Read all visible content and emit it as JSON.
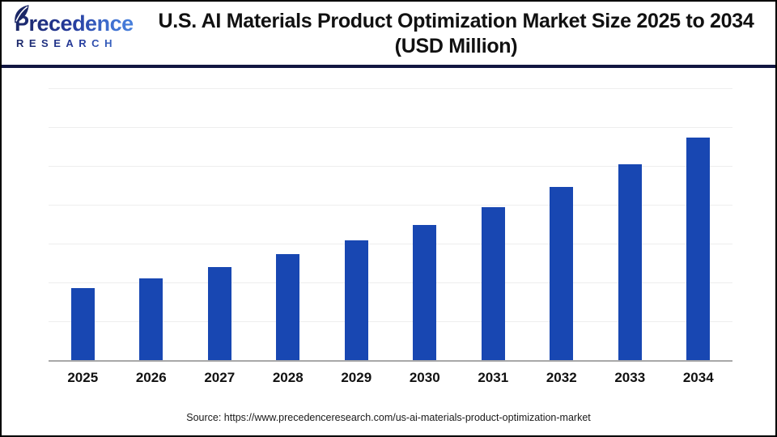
{
  "brand": {
    "name_line1": "Precedence",
    "name_line2": "RESEARCH"
  },
  "header": {
    "title_line1": "U.S. AI Materials Product Optimization Market Size 2025 to 2034",
    "title_line2": "(USD Million)"
  },
  "footer": {
    "source_text": "Source: https://www.precedenceresearch.com/us-ai-materials-product-optimization-market"
  },
  "colors": {
    "bar": "#1847B2",
    "header_divider": "#111641",
    "gridline": "#eeeeee",
    "axis_line": "#a8a8a8",
    "logo_dark": "#1b2766",
    "logo_light": "#4a86e0"
  },
  "chart_data": {
    "type": "bar",
    "title": "U.S. AI Materials Product Optimization Market Size 2025 to 2034 (USD Million)",
    "unit": "USD Million",
    "categories": [
      "2025",
      "2026",
      "2027",
      "2028",
      "2029",
      "2030",
      "2031",
      "2032",
      "2033",
      "2034"
    ],
    "values": [
      93,
      105,
      120,
      136,
      154,
      174,
      197,
      223,
      252,
      286
    ],
    "xlabel": "",
    "ylabel": "",
    "ylim": [
      0,
      350
    ],
    "gridline_step": 50,
    "y_axis_tick_labels_visible": false,
    "grid": true,
    "legend": false,
    "note": "Y-axis has no tick labels in the source image; values are estimated from bar heights relative to unlabeled gridlines (approx. 13% year-over-year growth)."
  }
}
